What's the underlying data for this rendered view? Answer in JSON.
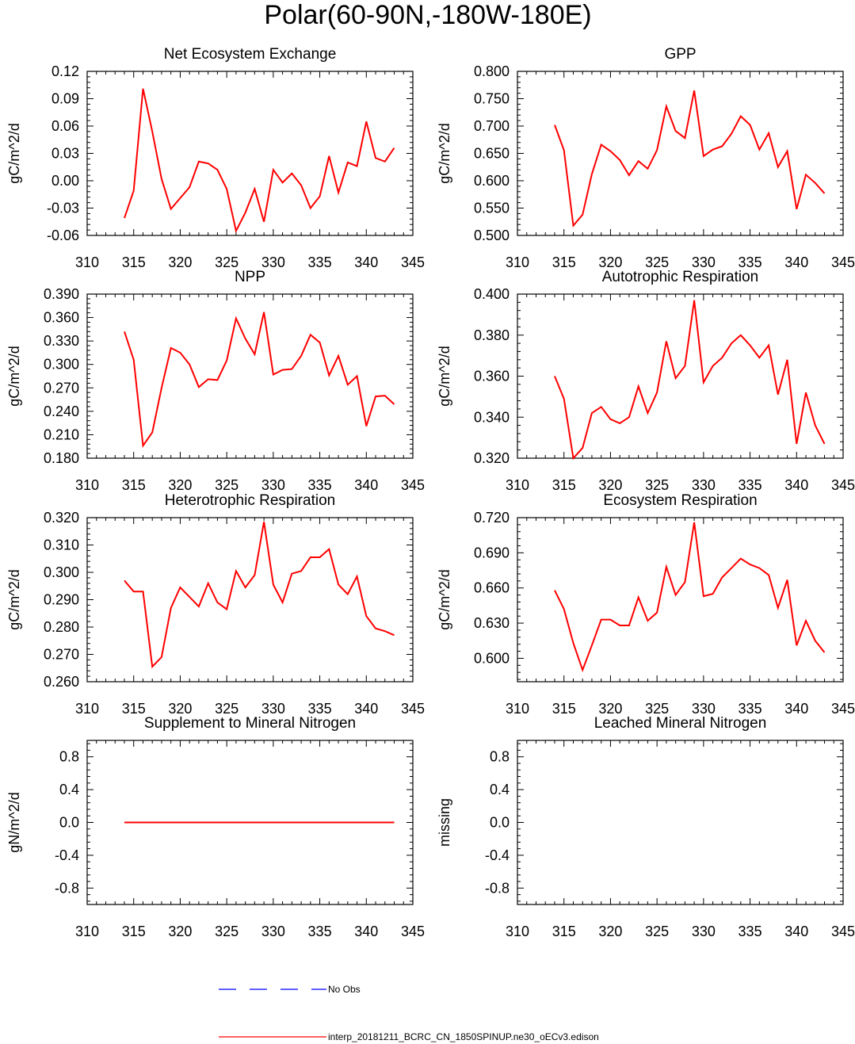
{
  "figure": {
    "title": "Polar(60-90N,-180W-180E)"
  },
  "legend": [
    {
      "label": "No Obs",
      "color": "#0000ff",
      "dash": "dashed"
    },
    {
      "label": "interp_20181211_BCRC_CN_1850SPINUP.ne30_oECv3.edison",
      "color": "#ff0000",
      "dash": "solid"
    }
  ],
  "colors": {
    "model_line": "#ff0000",
    "obs_line": "#0000ff",
    "axis": "#000000"
  },
  "chart_data": [
    {
      "type": "line",
      "title": "Net Ecosystem Exchange",
      "ylabel": "gC/m^2/d",
      "xlim": [
        310,
        345
      ],
      "ylim": [
        -0.06,
        0.12
      ],
      "xticks": [
        "310",
        "315",
        "320",
        "325",
        "330",
        "335",
        "340",
        "345"
      ],
      "yticks": [
        "-0.06",
        "-0.03",
        "0.00",
        "0.03",
        "0.06",
        "0.09",
        "0.12"
      ],
      "x": [
        314,
        315,
        316,
        317,
        318,
        319,
        320,
        321,
        322,
        323,
        324,
        325,
        326,
        327,
        328,
        329,
        330,
        331,
        332,
        333,
        334,
        335,
        336,
        337,
        338,
        339,
        340,
        341,
        342,
        343
      ],
      "series": [
        {
          "values": [
            -0.041,
            -0.011,
            0.101,
            0.054,
            0.002,
            -0.031,
            -0.019,
            -0.007,
            0.021,
            0.019,
            0.012,
            -0.009,
            -0.055,
            -0.035,
            -0.009,
            -0.045,
            0.012,
            -0.002,
            0.008,
            -0.005,
            -0.03,
            -0.017,
            0.027,
            -0.013,
            0.02,
            0.016,
            0.065,
            0.025,
            0.021,
            0.036
          ]
        }
      ]
    },
    {
      "type": "line",
      "title": "GPP",
      "ylabel": "gC/m^2/d",
      "xlim": [
        310,
        345
      ],
      "ylim": [
        0.5,
        0.8
      ],
      "xticks": [
        "310",
        "315",
        "320",
        "325",
        "330",
        "335",
        "340",
        "345"
      ],
      "yticks": [
        "0.500",
        "0.550",
        "0.600",
        "0.650",
        "0.700",
        "0.750",
        "0.800"
      ],
      "x": [
        314,
        315,
        316,
        317,
        318,
        319,
        320,
        321,
        322,
        323,
        324,
        325,
        326,
        327,
        328,
        329,
        330,
        331,
        332,
        333,
        334,
        335,
        336,
        337,
        338,
        339,
        340,
        341,
        342,
        343
      ],
      "series": [
        {
          "values": [
            0.702,
            0.656,
            0.518,
            0.538,
            0.612,
            0.666,
            0.654,
            0.638,
            0.61,
            0.636,
            0.622,
            0.656,
            0.736,
            0.691,
            0.678,
            0.765,
            0.645,
            0.657,
            0.663,
            0.686,
            0.718,
            0.702,
            0.657,
            0.687,
            0.625,
            0.654,
            0.548,
            0.611,
            0.596,
            0.577
          ]
        }
      ]
    },
    {
      "type": "line",
      "title": "NPP",
      "ylabel": "gC/m^2/d",
      "xlim": [
        310,
        345
      ],
      "ylim": [
        0.18,
        0.39
      ],
      "xticks": [
        "310",
        "315",
        "320",
        "325",
        "330",
        "335",
        "340",
        "345"
      ],
      "yticks": [
        "0.180",
        "0.210",
        "0.240",
        "0.270",
        "0.300",
        "0.330",
        "0.360",
        "0.390"
      ],
      "x": [
        314,
        315,
        316,
        317,
        318,
        319,
        320,
        321,
        322,
        323,
        324,
        325,
        326,
        327,
        328,
        329,
        330,
        331,
        332,
        333,
        334,
        335,
        336,
        337,
        338,
        339,
        340,
        341,
        342,
        343
      ],
      "series": [
        {
          "values": [
            0.342,
            0.306,
            0.196,
            0.213,
            0.27,
            0.321,
            0.315,
            0.3,
            0.271,
            0.281,
            0.28,
            0.305,
            0.359,
            0.333,
            0.313,
            0.367,
            0.287,
            0.293,
            0.294,
            0.311,
            0.338,
            0.328,
            0.286,
            0.311,
            0.274,
            0.285,
            0.221,
            0.259,
            0.26,
            0.249
          ]
        }
      ]
    },
    {
      "type": "line",
      "title": "Autotrophic Respiration",
      "ylabel": "gC/m^2/d",
      "xlim": [
        310,
        345
      ],
      "ylim": [
        0.32,
        0.4
      ],
      "xticks": [
        "310",
        "315",
        "320",
        "325",
        "330",
        "335",
        "340",
        "345"
      ],
      "yticks": [
        "0.320",
        "0.340",
        "0.360",
        "0.380",
        "0.400"
      ],
      "x": [
        314,
        315,
        316,
        317,
        318,
        319,
        320,
        321,
        322,
        323,
        324,
        325,
        326,
        327,
        328,
        329,
        330,
        331,
        332,
        333,
        334,
        335,
        336,
        337,
        338,
        339,
        340,
        341,
        342,
        343
      ],
      "series": [
        {
          "values": [
            0.36,
            0.349,
            0.32,
            0.325,
            0.342,
            0.345,
            0.339,
            0.337,
            0.34,
            0.355,
            0.342,
            0.352,
            0.377,
            0.359,
            0.365,
            0.397,
            0.357,
            0.365,
            0.369,
            0.376,
            0.38,
            0.375,
            0.369,
            0.375,
            0.351,
            0.368,
            0.327,
            0.352,
            0.336,
            0.327
          ]
        }
      ]
    },
    {
      "type": "line",
      "title": "Heterotrophic Respiration",
      "ylabel": "gC/m^2/d",
      "xlim": [
        310,
        345
      ],
      "ylim": [
        0.26,
        0.32
      ],
      "xticks": [
        "310",
        "315",
        "320",
        "325",
        "330",
        "335",
        "340",
        "345"
      ],
      "yticks": [
        "0.260",
        "0.270",
        "0.280",
        "0.290",
        "0.300",
        "0.310",
        "0.320"
      ],
      "x": [
        314,
        315,
        316,
        317,
        318,
        319,
        320,
        321,
        322,
        323,
        324,
        325,
        326,
        327,
        328,
        329,
        330,
        331,
        332,
        333,
        334,
        335,
        336,
        337,
        338,
        339,
        340,
        341,
        342,
        343
      ],
      "series": [
        {
          "values": [
            0.297,
            0.293,
            0.293,
            0.2655,
            0.269,
            0.287,
            0.2945,
            0.291,
            0.2875,
            0.296,
            0.289,
            0.2865,
            0.3005,
            0.2945,
            0.299,
            0.3185,
            0.2955,
            0.289,
            0.2995,
            0.3005,
            0.3055,
            0.3055,
            0.3085,
            0.2955,
            0.292,
            0.2985,
            0.284,
            0.2795,
            0.2785,
            0.277
          ]
        }
      ]
    },
    {
      "type": "line",
      "title": "Ecosystem Respiration",
      "ylabel": "gC/m^2/d",
      "xlim": [
        310,
        345
      ],
      "ylim": [
        0.58,
        0.72
      ],
      "xticks": [
        "310",
        "315",
        "320",
        "325",
        "330",
        "335",
        "340",
        "345"
      ],
      "yticks": [
        "0.600",
        "0.630",
        "0.660",
        "0.690",
        "0.720"
      ],
      "x": [
        314,
        315,
        316,
        317,
        318,
        319,
        320,
        321,
        322,
        323,
        324,
        325,
        326,
        327,
        328,
        329,
        330,
        331,
        332,
        333,
        334,
        335,
        336,
        337,
        338,
        339,
        340,
        341,
        342,
        343
      ],
      "series": [
        {
          "values": [
            0.658,
            0.642,
            0.613,
            0.59,
            0.611,
            0.633,
            0.633,
            0.628,
            0.628,
            0.652,
            0.632,
            0.639,
            0.678,
            0.654,
            0.665,
            0.716,
            0.653,
            0.655,
            0.669,
            0.677,
            0.685,
            0.68,
            0.677,
            0.671,
            0.643,
            0.667,
            0.611,
            0.632,
            0.615,
            0.605
          ]
        }
      ]
    },
    {
      "type": "line",
      "title": "Supplement to Mineral Nitrogen",
      "ylabel": "gN/m^2/d",
      "xlim": [
        310,
        345
      ],
      "ylim": [
        -1.0,
        1.0
      ],
      "xticks": [
        "310",
        "315",
        "320",
        "325",
        "330",
        "335",
        "340",
        "345"
      ],
      "yticks": [
        "-0.8",
        "-0.4",
        "0.0",
        "0.4",
        "0.8"
      ],
      "x": [
        314,
        343
      ],
      "series": [
        {
          "values": [
            0.0,
            0.0
          ]
        }
      ]
    },
    {
      "type": "line",
      "title": "Leached Mineral Nitrogen",
      "ylabel": "missing",
      "xlim": [
        310,
        345
      ],
      "ylim": [
        -1.0,
        1.0
      ],
      "xticks": [
        "310",
        "315",
        "320",
        "325",
        "330",
        "335",
        "340",
        "345"
      ],
      "yticks": [
        "-0.8",
        "-0.4",
        "0.0",
        "0.4",
        "0.8"
      ],
      "x": [],
      "series": []
    }
  ]
}
